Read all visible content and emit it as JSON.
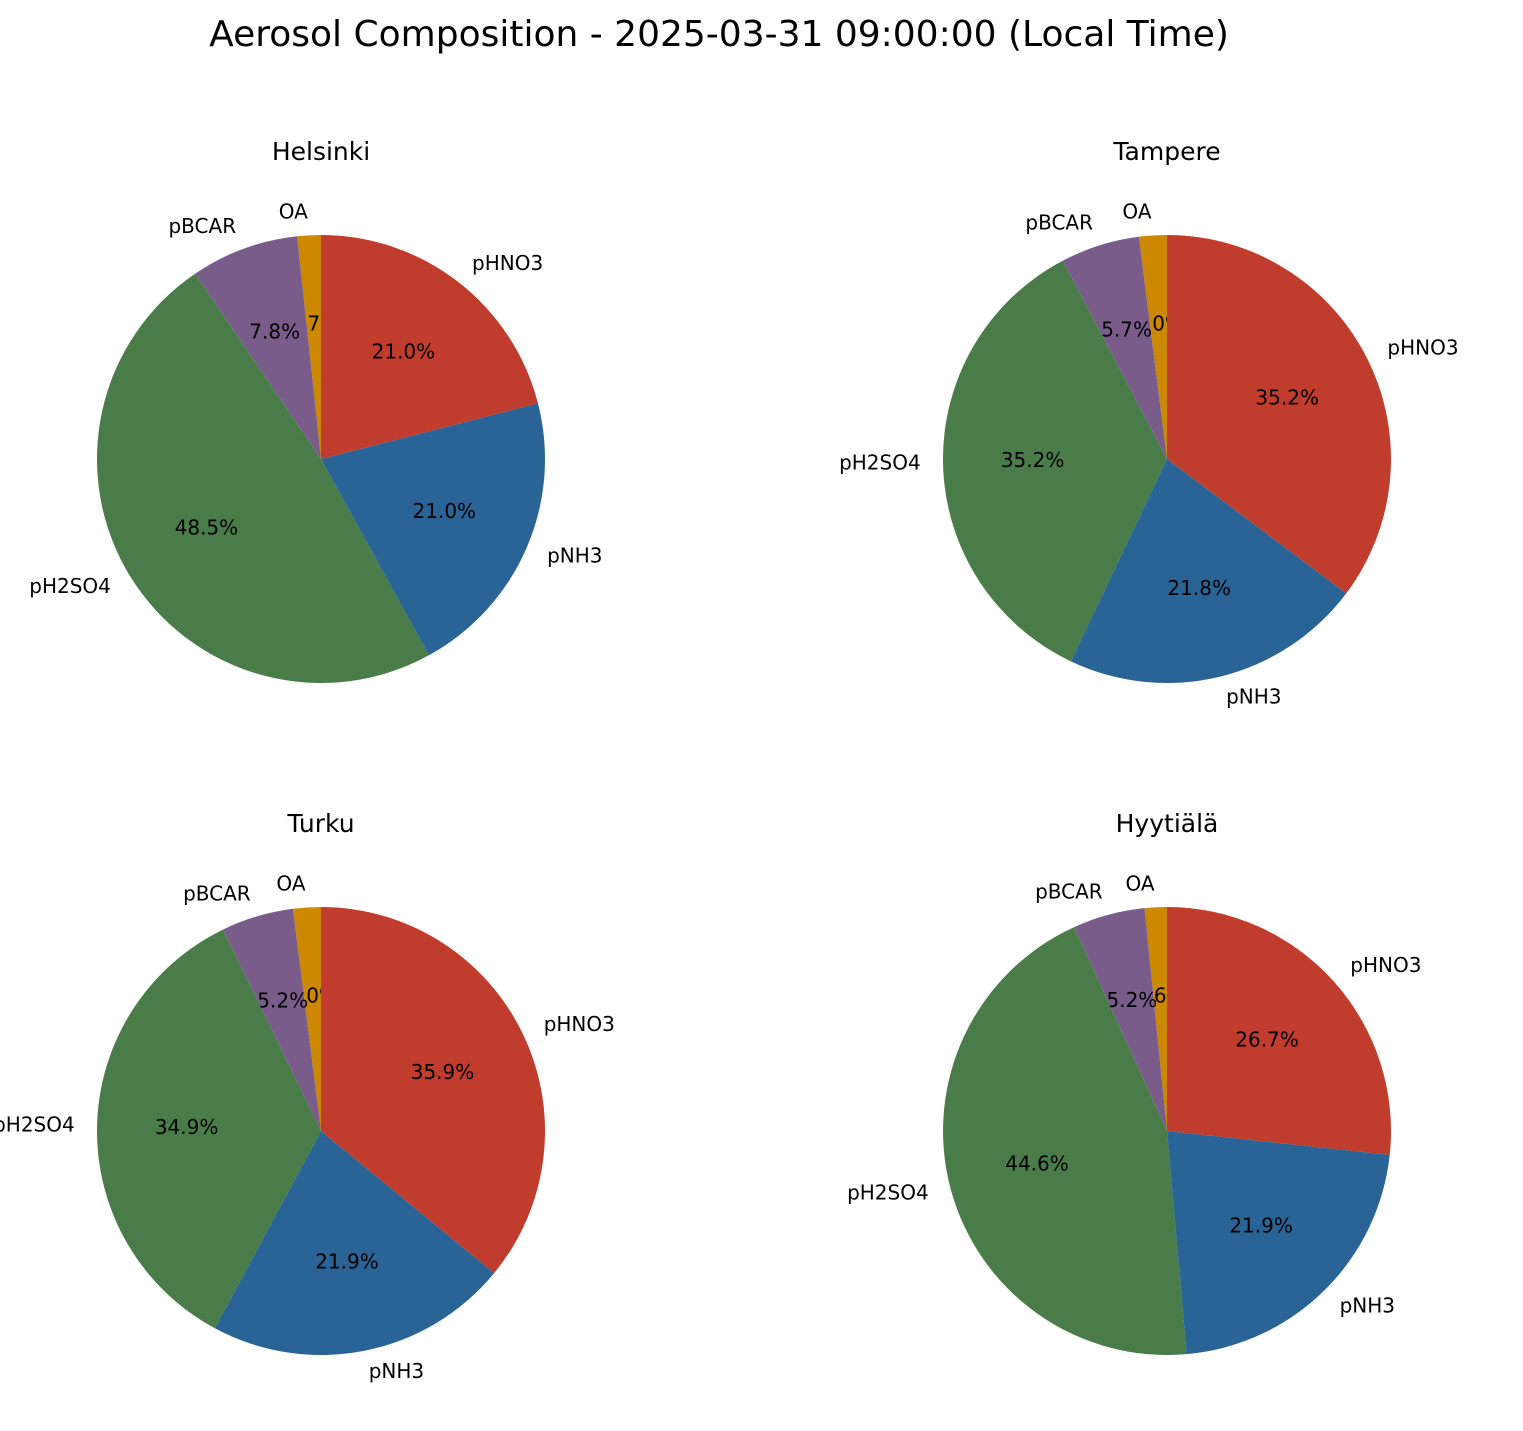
{
  "title": "Aerosol Composition - 2025-03-31 09:00:00 (Local Time)",
  "colors": {
    "OA": "#CC8800",
    "pBCAR": "#7A5C8A",
    "pH2SO4": "#4A7C4A",
    "pNH3": "#2A6496",
    "pHNO3": "#C03C2C"
  },
  "chart_data": [
    {
      "type": "pie",
      "title": "Helsinki",
      "categories": [
        "OA",
        "pBCAR",
        "pH2SO4",
        "pNH3",
        "pHNO3"
      ],
      "values": [
        1.7,
        7.8,
        48.5,
        21.0,
        21.0
      ],
      "labels": [
        "1.7%",
        "7.8%",
        "48.5%",
        "21.0%",
        "21.0%"
      ]
    },
    {
      "type": "pie",
      "title": "Tampere",
      "categories": [
        "OA",
        "pBCAR",
        "pH2SO4",
        "pNH3",
        "pHNO3"
      ],
      "values": [
        2.0,
        5.7,
        35.2,
        21.8,
        35.2
      ],
      "labels": [
        "2.0%",
        "5.7%",
        "35.2%",
        "21.8%",
        "35.2%"
      ]
    },
    {
      "type": "pie",
      "title": "Turku",
      "categories": [
        "OA",
        "pBCAR",
        "pH2SO4",
        "pNH3",
        "pHNO3"
      ],
      "values": [
        2.0,
        5.2,
        34.9,
        21.9,
        35.9
      ],
      "labels": [
        "2.0%",
        "5.2%",
        "34.9%",
        "21.9%",
        "35.9%"
      ]
    },
    {
      "type": "pie",
      "title": "Hyytiälä",
      "categories": [
        "OA",
        "pBCAR",
        "pH2SO4",
        "pNH3",
        "pHNO3"
      ],
      "values": [
        1.6,
        5.2,
        44.6,
        21.9,
        26.7
      ],
      "labels": [
        "1.6%",
        "5.2%",
        "44.6%",
        "21.9%",
        "26.7%"
      ]
    }
  ]
}
